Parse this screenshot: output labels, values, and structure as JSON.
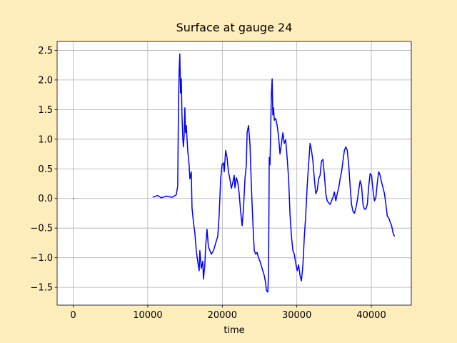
{
  "chart_data": {
    "type": "line",
    "title": "Surface at gauge 24",
    "x_label": "time",
    "x": [
      0,
      5000,
      10660,
      11330,
      11810,
      12480,
      13250,
      13820,
      14020,
      14110,
      14210,
      14300,
      14400,
      14500,
      14590,
      14690,
      14780,
      14880,
      14980,
      15070,
      15170,
      15360,
      15550,
      15650,
      15840,
      15940,
      16130,
      16320,
      16510,
      16700,
      16900,
      16990,
      17180,
      17380,
      17470,
      17660,
      17760,
      17950,
      18140,
      18340,
      18530,
      18820,
      19100,
      19390,
      19580,
      19780,
      19970,
      20160,
      20260,
      20450,
      20640,
      20830,
      21020,
      21220,
      21410,
      21600,
      21700,
      21890,
      22080,
      22270,
      22460,
      22660,
      22850,
      23040,
      23230,
      23330,
      23520,
      23710,
      23900,
      24100,
      24290,
      24480,
      24670,
      24860,
      25060,
      25340,
      25630,
      25820,
      25920,
      26110,
      26210,
      26300,
      26400,
      26590,
      26690,
      26780,
      26880,
      26980,
      27170,
      27360,
      27550,
      27740,
      27940,
      28130,
      28320,
      28510,
      28700,
      28900,
      29090,
      29280,
      29470,
      29660,
      29860,
      30050,
      30240,
      30430,
      30620,
      30820,
      31010,
      31200,
      31390,
      31580,
      31780,
      31970,
      32160,
      32350,
      32540,
      32740,
      32930,
      33120,
      33310,
      33500,
      33700,
      33890,
      34080,
      34270,
      34460,
      34660,
      34850,
      35040,
      35230,
      35420,
      35620,
      35810,
      36000,
      36190,
      36380,
      36580,
      36770,
      36960,
      37150,
      37340,
      37540,
      37730,
      37920,
      38110,
      38300,
      38500,
      38690,
      38880,
      39070,
      39260,
      39460,
      39650,
      39840,
      40030,
      40220,
      40420,
      40610,
      40800,
      40990,
      41180,
      41380,
      41570,
      41760,
      41950,
      42140,
      42340,
      42530,
      42720,
      42910,
      43100
    ],
    "series": [
      {
        "color": "blue",
        "values": [
          0,
          null,
          0.02,
          0.05,
          0.01,
          0.04,
          0.02,
          0.06,
          0.21,
          1.41,
          2.14,
          2.44,
          1.78,
          2.02,
          1.41,
          1.05,
          0.87,
          1.05,
          1.53,
          1.11,
          1.23,
          0.81,
          0.57,
          0.33,
          0.45,
          -0.16,
          -0.4,
          -0.58,
          -0.88,
          -1.06,
          -1.22,
          -0.88,
          -1.18,
          -1.06,
          -1.36,
          -1.12,
          -0.82,
          -0.52,
          -0.82,
          -0.88,
          -0.94,
          -0.88,
          -0.76,
          -0.64,
          -0.28,
          0.33,
          0.57,
          0.6,
          0.45,
          0.81,
          0.69,
          0.45,
          0.33,
          0.17,
          0.27,
          0.39,
          0.18,
          0.35,
          0.27,
          0.08,
          -0.22,
          -0.46,
          -0.16,
          0.33,
          0.57,
          1.11,
          1.23,
          0.93,
          0.21,
          -0.4,
          -0.88,
          -0.94,
          -0.91,
          -1.0,
          -1.06,
          -1.18,
          -1.3,
          -1.43,
          -1.55,
          -1.58,
          -1.24,
          0.69,
          0.57,
          1.78,
          2.02,
          1.41,
          1.53,
          1.32,
          1.35,
          1.23,
          1.05,
          0.75,
          0.93,
          1.11,
          0.93,
          0.99,
          0.69,
          0.33,
          -0.28,
          -0.64,
          -0.88,
          -0.94,
          -1.1,
          -1.22,
          -1.12,
          -1.3,
          -1.39,
          -1.12,
          -0.64,
          -0.28,
          0.21,
          0.57,
          0.93,
          0.81,
          0.63,
          0.33,
          0.08,
          0.14,
          0.33,
          0.39,
          0.63,
          0.66,
          0.39,
          0.08,
          -0.04,
          -0.07,
          -0.1,
          -0.04,
          0.02,
          0.11,
          -0.04,
          0.08,
          0.18,
          0.33,
          0.45,
          0.63,
          0.81,
          0.87,
          0.81,
          0.57,
          0.21,
          -0.1,
          -0.22,
          -0.25,
          -0.16,
          -0.04,
          0.14,
          0.3,
          0.21,
          -0.1,
          -0.18,
          -0.18,
          -0.1,
          0.21,
          0.42,
          0.39,
          0.14,
          -0.04,
          0.02,
          0.27,
          0.45,
          0.39,
          0.27,
          0.18,
          0.08,
          -0.1,
          -0.3,
          -0.33,
          -0.4,
          -0.46,
          -0.58,
          -0.64
        ]
      }
    ],
    "xlim": [
      -2160,
      45360
    ],
    "xticks": [
      0,
      10000,
      20000,
      30000,
      40000
    ],
    "ylim": [
      -1.8,
      2.65
    ],
    "yticks": [
      {
        "value": -1.5,
        "label": "−1.5"
      },
      {
        "value": -1.0,
        "label": "−1.0"
      },
      {
        "value": -0.5,
        "label": "−0.5"
      },
      {
        "value": 0,
        "label": "0.0"
      },
      0.5,
      {
        "value": 1,
        "label": "1.0"
      },
      1.5,
      {
        "value": 2,
        "label": "2.0"
      },
      2.5
    ],
    "grid": true
  }
}
